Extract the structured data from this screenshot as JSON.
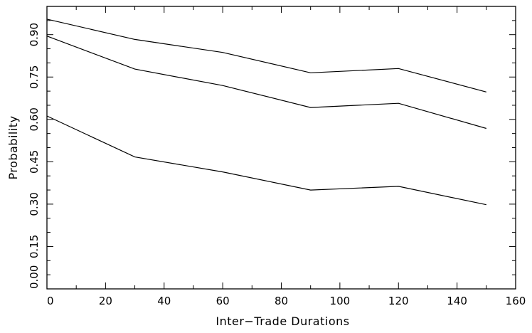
{
  "chart_data": {
    "type": "line",
    "title": "",
    "xlabel": "Inter−Trade Durations",
    "ylabel": "Probability",
    "xlim": [
      0,
      160
    ],
    "ylim": [
      0.0,
      1.0
    ],
    "x_ticks": [
      "0",
      "20",
      "40",
      "60",
      "80",
      "100",
      "120",
      "140",
      "160"
    ],
    "y_ticks": [
      "0.00",
      "0.15",
      "0.30",
      "0.45",
      "0.60",
      "0.75",
      "0.90"
    ],
    "grid": false,
    "legend": "none",
    "x": [
      0,
      30,
      60,
      90,
      120,
      150
    ],
    "series": [
      {
        "values": [
          0.955,
          0.883,
          0.837,
          0.765,
          0.78,
          0.697
        ]
      },
      {
        "values": [
          0.895,
          0.778,
          0.72,
          0.642,
          0.657,
          0.568
        ]
      },
      {
        "values": [
          0.612,
          0.467,
          0.414,
          0.35,
          0.363,
          0.298
        ]
      }
    ],
    "line_color": "#000000"
  }
}
